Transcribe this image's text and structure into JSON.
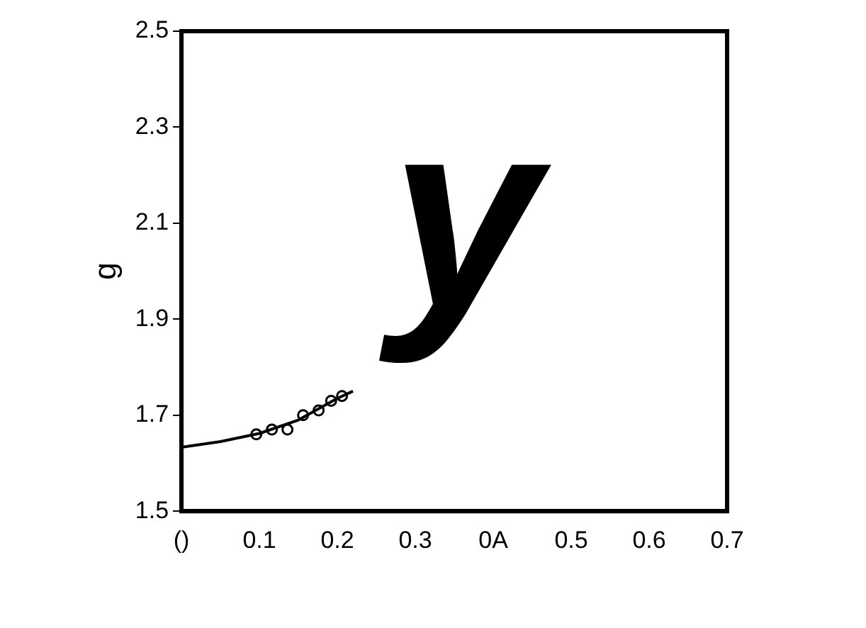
{
  "chart_data": {
    "type": "line",
    "ylabel": "g",
    "annotations": [
      "y"
    ],
    "xlim": [
      0,
      0.7
    ],
    "ylim": [
      1.5,
      2.5
    ],
    "xticks": [
      {
        "value": 0,
        "label": "()"
      },
      0.1,
      0.2,
      0.3,
      {
        "value": 0.4,
        "label": "0A"
      },
      0.5,
      0.6,
      0.7
    ],
    "yticks": [
      1.5,
      1.7,
      1.9,
      2.1,
      2.3,
      2.5
    ],
    "grid": false,
    "legend": false,
    "series": [
      {
        "color": "#000000",
        "marker": "none",
        "line_style": "solid",
        "x": [
          0,
          0.05,
          0.1,
          0.15,
          0.2,
          0.22
        ],
        "values": [
          1.633,
          1.645,
          1.662,
          1.69,
          1.735,
          1.75
        ]
      },
      {
        "type": "scatter",
        "color": "#000000",
        "marker": "circle",
        "x": [
          0.096,
          0.116,
          0.136,
          0.156,
          0.176,
          0.192,
          0.206
        ],
        "values": [
          1.66,
          1.67,
          1.67,
          1.7,
          1.71,
          1.73,
          1.74
        ]
      }
    ]
  }
}
